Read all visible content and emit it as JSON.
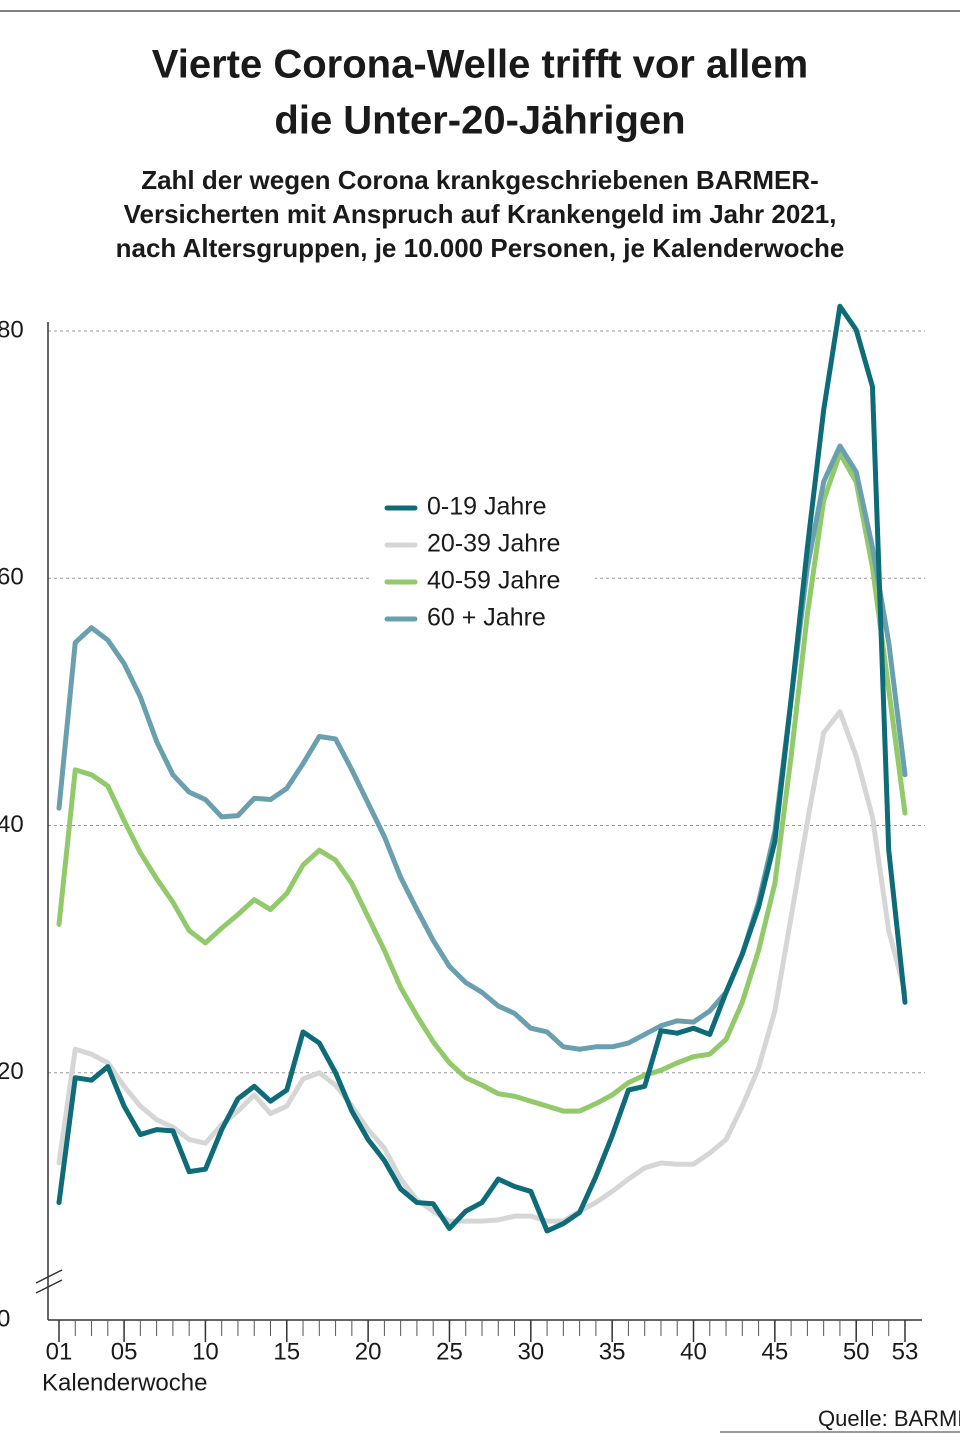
{
  "chart_data": {
    "type": "line",
    "title": [
      "Vierte Corona-Welle trifft vor allem",
      "die Unter-20-Jährigen"
    ],
    "subtitle": [
      "Zahl der wegen Corona krankgeschriebenen BARMER-",
      "Versicherten mit Anspruch auf Krankengeld im Jahr 2021,",
      "nach Altersgruppen, je 10.000 Personen, je Kalenderwoche"
    ],
    "x_label": "Kalenderwoche",
    "source": "Quelle: BARMER",
    "x": [
      1,
      2,
      3,
      4,
      5,
      6,
      7,
      8,
      9,
      10,
      11,
      12,
      13,
      14,
      15,
      16,
      17,
      18,
      19,
      20,
      21,
      22,
      23,
      24,
      25,
      26,
      27,
      28,
      29,
      30,
      31,
      32,
      33,
      34,
      35,
      36,
      37,
      38,
      39,
      40,
      41,
      42,
      43,
      44,
      45,
      46,
      47,
      48,
      49,
      50,
      51,
      52,
      53
    ],
    "xlim": [
      1,
      53
    ],
    "xticks": [
      {
        "value": 1,
        "label": "01"
      },
      {
        "value": 5,
        "label": "05"
      },
      10,
      15,
      20,
      25,
      30,
      35,
      40,
      45,
      50,
      53
    ],
    "ylim": [
      0,
      80
    ],
    "yticks": [
      0,
      20,
      40,
      60,
      80
    ],
    "grid": true,
    "legend": "center",
    "series": [
      {
        "name": "0-19 Jahre",
        "color": "#0e6b78",
        "values": [
          9.5,
          19.6,
          19.4,
          20.5,
          17.3,
          15.0,
          15.4,
          15.3,
          12.0,
          12.2,
          15.4,
          17.9,
          18.9,
          17.7,
          18.6,
          23.3,
          22.4,
          20.0,
          16.9,
          14.6,
          12.9,
          10.6,
          9.5,
          9.4,
          7.4,
          8.8,
          9.5,
          11.4,
          10.8,
          10.4,
          7.2,
          7.8,
          8.7,
          11.6,
          14.9,
          18.6,
          18.9,
          23.4,
          23.2,
          23.6,
          23.1,
          26.5,
          29.6,
          33.4,
          38.7,
          50.2,
          62.5,
          73.6,
          82.0,
          80.1,
          75.5,
          38.0,
          25.7
        ]
      },
      {
        "name": "20-39 Jahre",
        "color": "#d6d6d6",
        "values": [
          12.7,
          21.9,
          21.5,
          20.8,
          18.9,
          17.3,
          16.2,
          15.6,
          14.6,
          14.3,
          15.8,
          16.9,
          18.2,
          16.7,
          17.3,
          19.5,
          20.0,
          19.0,
          17.3,
          15.4,
          13.9,
          11.4,
          9.7,
          8.8,
          8.0,
          8.0,
          8.0,
          8.1,
          8.4,
          8.4,
          8.0,
          8.0,
          8.8,
          9.5,
          10.4,
          11.4,
          12.3,
          12.7,
          12.6,
          12.6,
          13.5,
          14.6,
          17.3,
          20.4,
          25.0,
          32.6,
          40.3,
          47.5,
          49.2,
          45.6,
          40.7,
          31.5,
          26.5
        ]
      },
      {
        "name": "40-59 Jahre",
        "color": "#92c96a",
        "values": [
          32.0,
          44.5,
          44.1,
          43.2,
          40.4,
          37.8,
          35.7,
          33.8,
          31.5,
          30.5,
          31.7,
          32.8,
          34.0,
          33.2,
          34.5,
          36.8,
          38.0,
          37.2,
          35.3,
          32.6,
          29.9,
          26.9,
          24.6,
          22.5,
          20.8,
          19.6,
          19.0,
          18.3,
          18.1,
          17.7,
          17.3,
          16.9,
          16.9,
          17.5,
          18.2,
          19.2,
          19.8,
          20.2,
          20.8,
          21.3,
          21.5,
          22.7,
          25.7,
          29.9,
          35.3,
          45.6,
          57.1,
          66.3,
          70.1,
          67.8,
          60.9,
          51.0,
          41.0
        ]
      },
      {
        "name": "60 + Jahre",
        "color": "#6a9fb0",
        "values": [
          41.4,
          54.8,
          56.0,
          55.0,
          53.1,
          50.4,
          46.8,
          44.1,
          42.7,
          42.1,
          40.7,
          40.8,
          42.2,
          42.1,
          43.0,
          45.0,
          47.2,
          47.0,
          44.5,
          41.8,
          39.1,
          35.8,
          33.2,
          30.7,
          28.6,
          27.3,
          26.5,
          25.4,
          24.8,
          23.6,
          23.3,
          22.1,
          21.9,
          22.1,
          22.1,
          22.4,
          23.1,
          23.8,
          24.2,
          24.1,
          25.0,
          26.5,
          29.6,
          33.8,
          39.5,
          50.2,
          60.9,
          67.8,
          70.7,
          68.6,
          62.5,
          54.8,
          44.1
        ]
      }
    ]
  }
}
